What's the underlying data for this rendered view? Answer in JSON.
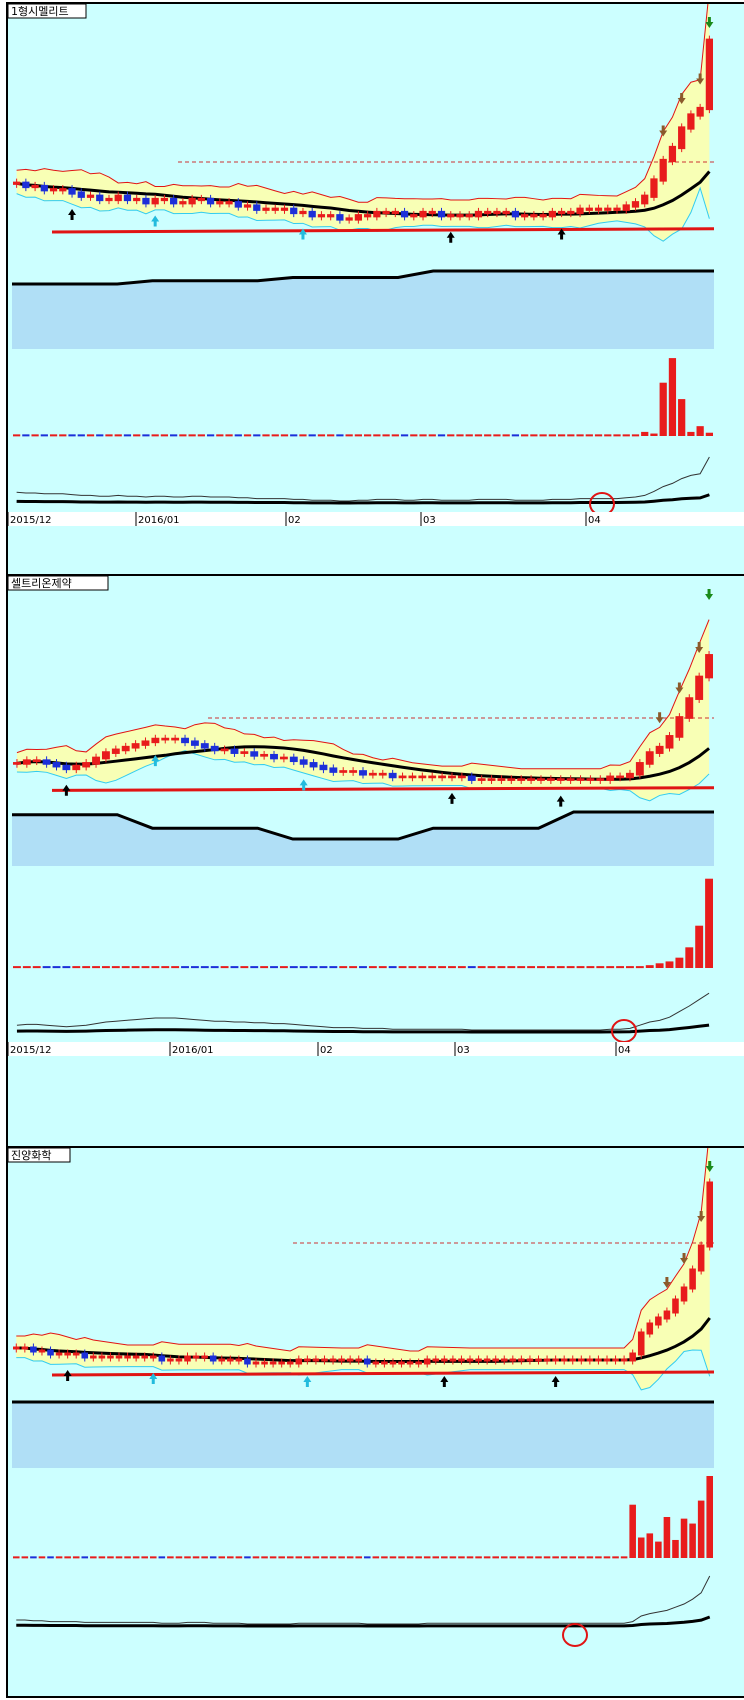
{
  "colors": {
    "background": "#ccffff",
    "up_candle": "#e81c1c",
    "down_candle": "#1c2fd9",
    "ma_long": "#000000",
    "ma_red": "#e01414",
    "band_fill_yellow": "#ffffa8",
    "band_fill_blue": "#9cc9f0",
    "cyan_band": "#33ccee",
    "resistance_line": "#cc3333",
    "signal_circle": "#e01414",
    "arrow_black": "#000000",
    "arrow_cyan": "#22bbdd",
    "arrow_brown": "#8b5a2b",
    "arrow_green": "#1a8a1a",
    "arrow_blue": "#2244cc"
  },
  "chart_data": [
    {
      "type": "candlestick",
      "title": "1형시멜리트",
      "x_tick_labels": [
        "2015/12",
        "2016/01",
        "02",
        "03",
        "04"
      ],
      "price_path": [
        0.51,
        0.5,
        0.5,
        0.49,
        0.49,
        0.49,
        0.48,
        0.47,
        0.47,
        0.46,
        0.46,
        0.47,
        0.46,
        0.46,
        0.45,
        0.46,
        0.46,
        0.45,
        0.45,
        0.46,
        0.46,
        0.45,
        0.45,
        0.45,
        0.44,
        0.44,
        0.43,
        0.43,
        0.43,
        0.43,
        0.42,
        0.42,
        0.41,
        0.41,
        0.41,
        0.4,
        0.4,
        0.41,
        0.41,
        0.42,
        0.42,
        0.42,
        0.41,
        0.41,
        0.42,
        0.42,
        0.41,
        0.41,
        0.41,
        0.41,
        0.42,
        0.42,
        0.42,
        0.42,
        0.41,
        0.41,
        0.41,
        0.41,
        0.42,
        0.42,
        0.42,
        0.43,
        0.43,
        0.43,
        0.43,
        0.43,
        0.44,
        0.45,
        0.47,
        0.52,
        0.58,
        0.62,
        0.68,
        0.72,
        0.74,
        0.95
      ],
      "volume_path": [
        0.02,
        0.02,
        0.02,
        0.02,
        0.02,
        0.02,
        0.02,
        0.02,
        0.02,
        0.02,
        0.02,
        0.02,
        0.02,
        0.02,
        0.02,
        0.02,
        0.02,
        0.02,
        0.02,
        0.02,
        0.02,
        0.02,
        0.02,
        0.02,
        0.02,
        0.02,
        0.02,
        0.02,
        0.02,
        0.02,
        0.02,
        0.02,
        0.02,
        0.02,
        0.02,
        0.02,
        0.02,
        0.02,
        0.02,
        0.02,
        0.02,
        0.02,
        0.02,
        0.02,
        0.02,
        0.02,
        0.02,
        0.02,
        0.02,
        0.02,
        0.02,
        0.02,
        0.02,
        0.02,
        0.02,
        0.02,
        0.02,
        0.02,
        0.02,
        0.02,
        0.02,
        0.02,
        0.02,
        0.02,
        0.02,
        0.02,
        0.02,
        0.02,
        0.05,
        0.03,
        0.65,
        0.95,
        0.45,
        0.05,
        0.12,
        0.04
      ],
      "peak_bar": 75
    },
    {
      "type": "candlestick",
      "title": "셀트리온제약",
      "x_tick_labels": [
        "2015/12",
        "2016/01",
        "02",
        "03",
        "04"
      ],
      "price_path": [
        0.38,
        0.39,
        0.39,
        0.38,
        0.37,
        0.36,
        0.37,
        0.38,
        0.4,
        0.42,
        0.43,
        0.44,
        0.45,
        0.46,
        0.47,
        0.47,
        0.47,
        0.46,
        0.45,
        0.44,
        0.43,
        0.43,
        0.42,
        0.42,
        0.41,
        0.41,
        0.4,
        0.4,
        0.39,
        0.38,
        0.37,
        0.36,
        0.35,
        0.35,
        0.35,
        0.34,
        0.34,
        0.34,
        0.33,
        0.33,
        0.33,
        0.33,
        0.33,
        0.33,
        0.33,
        0.33,
        0.32,
        0.32,
        0.32,
        0.32,
        0.32,
        0.32,
        0.32,
        0.32,
        0.32,
        0.32,
        0.32,
        0.32,
        0.32,
        0.32,
        0.33,
        0.33,
        0.34,
        0.38,
        0.42,
        0.44,
        0.48,
        0.55,
        0.62,
        0.7,
        0.78
      ],
      "volume_path": [
        0.02,
        0.02,
        0.02,
        0.02,
        0.02,
        0.02,
        0.02,
        0.02,
        0.02,
        0.02,
        0.02,
        0.02,
        0.02,
        0.02,
        0.02,
        0.02,
        0.02,
        0.02,
        0.02,
        0.02,
        0.02,
        0.02,
        0.02,
        0.02,
        0.02,
        0.02,
        0.02,
        0.02,
        0.02,
        0.02,
        0.02,
        0.02,
        0.02,
        0.02,
        0.02,
        0.02,
        0.02,
        0.02,
        0.02,
        0.02,
        0.02,
        0.02,
        0.02,
        0.02,
        0.02,
        0.02,
        0.02,
        0.02,
        0.02,
        0.02,
        0.02,
        0.02,
        0.02,
        0.02,
        0.02,
        0.02,
        0.02,
        0.02,
        0.02,
        0.02,
        0.02,
        0.02,
        0.02,
        0.02,
        0.03,
        0.05,
        0.07,
        0.11,
        0.22,
        0.45,
        0.95
      ],
      "peak_bar": 70
    },
    {
      "type": "candlestick",
      "title": "진양화학",
      "x_tick_labels": [],
      "price_path": [
        0.4,
        0.4,
        0.39,
        0.39,
        0.38,
        0.38,
        0.38,
        0.38,
        0.37,
        0.37,
        0.37,
        0.37,
        0.37,
        0.37,
        0.37,
        0.37,
        0.37,
        0.36,
        0.36,
        0.36,
        0.37,
        0.37,
        0.37,
        0.36,
        0.36,
        0.36,
        0.36,
        0.35,
        0.35,
        0.35,
        0.35,
        0.35,
        0.35,
        0.36,
        0.36,
        0.36,
        0.36,
        0.36,
        0.36,
        0.36,
        0.36,
        0.35,
        0.35,
        0.35,
        0.35,
        0.35,
        0.35,
        0.35,
        0.36,
        0.36,
        0.36,
        0.36,
        0.36,
        0.36,
        0.36,
        0.36,
        0.36,
        0.36,
        0.36,
        0.36,
        0.36,
        0.36,
        0.36,
        0.36,
        0.36,
        0.36,
        0.36,
        0.36,
        0.36,
        0.36,
        0.36,
        0.36,
        0.38,
        0.45,
        0.48,
        0.5,
        0.52,
        0.56,
        0.6,
        0.66,
        0.74,
        0.95
      ],
      "volume_path": [
        0.02,
        0.02,
        0.02,
        0.02,
        0.02,
        0.02,
        0.02,
        0.02,
        0.02,
        0.02,
        0.02,
        0.02,
        0.02,
        0.02,
        0.02,
        0.02,
        0.02,
        0.02,
        0.02,
        0.02,
        0.02,
        0.02,
        0.02,
        0.02,
        0.02,
        0.02,
        0.02,
        0.02,
        0.02,
        0.02,
        0.02,
        0.02,
        0.02,
        0.02,
        0.02,
        0.02,
        0.02,
        0.02,
        0.02,
        0.02,
        0.02,
        0.02,
        0.02,
        0.02,
        0.02,
        0.02,
        0.02,
        0.02,
        0.02,
        0.02,
        0.02,
        0.02,
        0.02,
        0.02,
        0.02,
        0.02,
        0.02,
        0.02,
        0.02,
        0.02,
        0.02,
        0.02,
        0.02,
        0.02,
        0.02,
        0.02,
        0.02,
        0.02,
        0.02,
        0.02,
        0.02,
        0.02,
        0.65,
        0.25,
        0.3,
        0.2,
        0.5,
        0.22,
        0.48,
        0.42,
        0.7,
        1.0
      ],
      "peak_bar": 81
    }
  ]
}
